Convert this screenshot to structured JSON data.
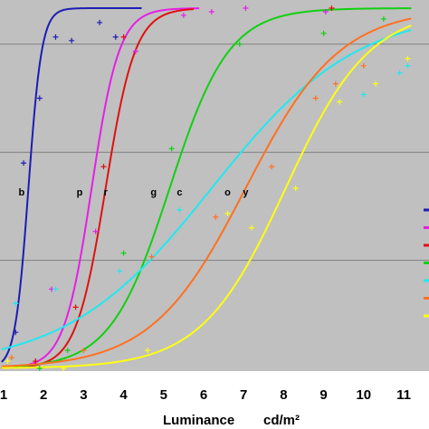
{
  "chart_data": {
    "type": "line",
    "xlabel": "Luminance",
    "xunit": "cd/m²",
    "xlim": [
      1,
      11.2
    ],
    "ylim": [
      0,
      1
    ],
    "x_ticks": [
      "1",
      "2",
      "3",
      "4",
      "5",
      "6",
      "7",
      "8",
      "9",
      "10",
      "11"
    ],
    "grid": true,
    "legend": "right",
    "background": "#c0c0c0",
    "series": [
      {
        "label": "b",
        "color": "#1c1cb4",
        "mid": 1.62,
        "slope": 6.0,
        "x_end": 4.45,
        "label_pos": [
          1.45,
          0.49
        ],
        "points": [
          [
            1.5,
            0.57
          ],
          [
            1.9,
            0.75
          ],
          [
            1.8,
            0.02
          ],
          [
            2.3,
            0.92
          ],
          [
            2.7,
            0.91
          ],
          [
            3.4,
            0.96
          ],
          [
            3.8,
            0.92
          ],
          [
            1.3,
            0.1
          ]
        ]
      },
      {
        "label": "p",
        "color": "#e61ee6",
        "mid": 3.2,
        "slope": 2.9,
        "x_end": 5.9,
        "label_pos": [
          2.9,
          0.49
        ],
        "points": [
          [
            2.2,
            0.22
          ],
          [
            3.3,
            0.38
          ],
          [
            4.3,
            0.88
          ],
          [
            5.5,
            0.98
          ],
          [
            6.2,
            0.99
          ],
          [
            7.05,
            1.0
          ],
          [
            9.05,
            0.99
          ]
        ]
      },
      {
        "label": "r",
        "color": "#e01010",
        "mid": 3.55,
        "slope": 2.7,
        "x_end": 5.75,
        "label_pos": [
          3.55,
          0.49
        ],
        "points": [
          [
            1.8,
            0.02
          ],
          [
            2.8,
            0.17
          ],
          [
            3.5,
            0.56
          ],
          [
            4.0,
            0.92
          ],
          [
            9.2,
            1.0
          ]
        ]
      },
      {
        "label": "g",
        "color": "#10d010",
        "mid": 5.15,
        "slope": 1.35,
        "x_end": 11.2,
        "label_pos": [
          4.75,
          0.49
        ],
        "points": [
          [
            1.9,
            0.0
          ],
          [
            2.6,
            0.05
          ],
          [
            4.0,
            0.32
          ],
          [
            5.2,
            0.61
          ],
          [
            6.9,
            0.9
          ],
          [
            9.0,
            0.93
          ],
          [
            10.5,
            0.97
          ]
        ]
      },
      {
        "label": "c",
        "color": "#20e8f0",
        "mid": 6.2,
        "slope": 0.55,
        "x_end": 11.2,
        "label_pos": [
          5.4,
          0.49
        ],
        "points": [
          [
            1.3,
            0.18
          ],
          [
            2.3,
            0.22
          ],
          [
            3.9,
            0.27
          ],
          [
            5.4,
            0.44
          ],
          [
            10.0,
            0.76
          ],
          [
            10.9,
            0.82
          ],
          [
            11.1,
            0.84
          ]
        ]
      },
      {
        "label": "o",
        "color": "#ff7020",
        "mid": 7.05,
        "slope": 0.85,
        "x_end": 11.2,
        "label_pos": [
          6.6,
          0.49
        ],
        "points": [
          [
            1.2,
            0.03
          ],
          [
            3.0,
            0.05
          ],
          [
            4.7,
            0.31
          ],
          [
            6.3,
            0.42
          ],
          [
            7.7,
            0.56
          ],
          [
            8.8,
            0.75
          ],
          [
            9.3,
            0.79
          ],
          [
            10.0,
            0.84
          ]
        ]
      },
      {
        "label": "y",
        "color": "#ffff10",
        "mid": 8.05,
        "slope": 0.95,
        "x_end": 11.2,
        "label_pos": [
          7.05,
          0.49
        ],
        "points": [
          [
            1.1,
            0.02
          ],
          [
            2.5,
            0.0
          ],
          [
            4.6,
            0.05
          ],
          [
            6.6,
            0.43
          ],
          [
            7.2,
            0.39
          ],
          [
            8.3,
            0.5
          ],
          [
            9.4,
            0.74
          ],
          [
            10.3,
            0.79
          ],
          [
            11.1,
            0.86
          ]
        ]
      }
    ]
  }
}
